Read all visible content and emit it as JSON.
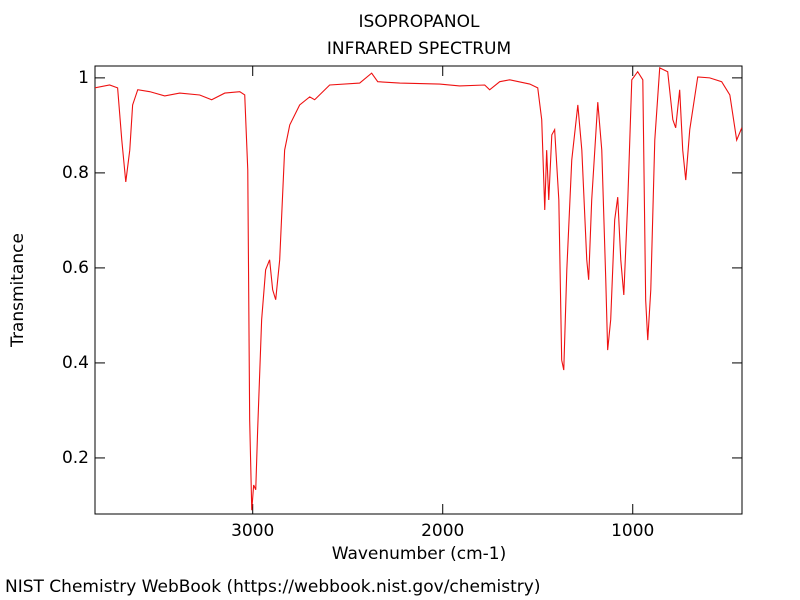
{
  "chart_data": {
    "type": "line",
    "title": "ISOPROPANOL",
    "subtitle": "INFRARED SPECTRUM",
    "x_label": "Wavenumber (cm-1)",
    "y_label": "Transmitance",
    "source": "NIST Chemistry WebBook (https://webbook.nist.gov/chemistry)",
    "xlim": [
      3830,
      425
    ],
    "ylim": [
      0.082,
      1.025
    ],
    "xticks": [
      3000,
      2000,
      1000
    ],
    "yticks": [
      0.2,
      0.4,
      0.6,
      0.8,
      1
    ],
    "x": [
      3832,
      3753,
      3711,
      3689,
      3668,
      3647,
      3632,
      3605,
      3542,
      3463,
      3384,
      3279,
      3216,
      3147,
      3068,
      3042,
      3026,
      3016,
      3005,
      2995,
      2984,
      2974,
      2953,
      2932,
      2911,
      2895,
      2879,
      2858,
      2832,
      2805,
      2753,
      2700,
      2674,
      2595,
      2437,
      2374,
      2342,
      2226,
      2016,
      1911,
      1779,
      1753,
      1700,
      1647,
      1542,
      1500,
      1479,
      1463,
      1453,
      1442,
      1426,
      1411,
      1389,
      1374,
      1363,
      1347,
      1321,
      1289,
      1268,
      1242,
      1232,
      1216,
      1184,
      1163,
      1142,
      1132,
      1116,
      1095,
      1079,
      1063,
      1047,
      1026,
      1005,
      974,
      947,
      932,
      921,
      905,
      884,
      858,
      816,
      789,
      774,
      753,
      737,
      721,
      700,
      658,
      595,
      532,
      489,
      453,
      426
    ],
    "series": [
      {
        "color": "#ee1111",
        "values": [
          0.979,
          0.985,
          0.979,
          0.869,
          0.781,
          0.848,
          0.943,
          0.975,
          0.971,
          0.962,
          0.968,
          0.964,
          0.954,
          0.968,
          0.971,
          0.964,
          0.806,
          0.28,
          0.09,
          0.143,
          0.133,
          0.259,
          0.491,
          0.596,
          0.617,
          0.554,
          0.533,
          0.617,
          0.848,
          0.901,
          0.943,
          0.96,
          0.954,
          0.985,
          0.989,
          1.01,
          0.992,
          0.989,
          0.987,
          0.983,
          0.985,
          0.975,
          0.992,
          0.996,
          0.987,
          0.979,
          0.912,
          0.722,
          0.848,
          0.743,
          0.88,
          0.891,
          0.743,
          0.406,
          0.385,
          0.596,
          0.827,
          0.943,
          0.848,
          0.617,
          0.575,
          0.743,
          0.949,
          0.848,
          0.575,
          0.427,
          0.491,
          0.701,
          0.749,
          0.617,
          0.543,
          0.743,
          0.996,
          1.013,
          0.996,
          0.533,
          0.448,
          0.554,
          0.869,
          1.021,
          1.013,
          0.912,
          0.895,
          0.975,
          0.848,
          0.785,
          0.891,
          1.002,
          1.0,
          0.992,
          0.964,
          0.869,
          0.895
        ]
      }
    ]
  }
}
